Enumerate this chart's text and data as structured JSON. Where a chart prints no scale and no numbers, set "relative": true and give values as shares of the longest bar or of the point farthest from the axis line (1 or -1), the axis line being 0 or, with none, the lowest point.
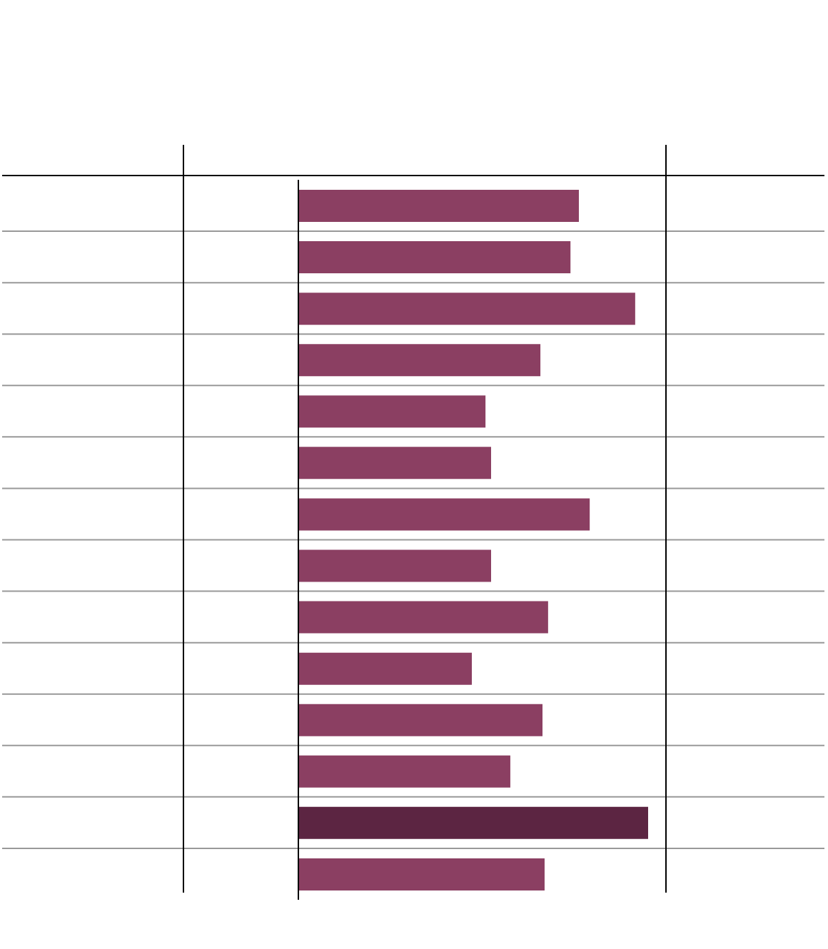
{
  "chart_data": {
    "type": "bar",
    "orientation": "horizontal",
    "relative": true,
    "categories": [
      null,
      null,
      null,
      null,
      null,
      null,
      null,
      null,
      null,
      null,
      null,
      null,
      null,
      null
    ],
    "values": [
      0.802,
      0.778,
      0.963,
      0.692,
      0.535,
      0.551,
      0.833,
      0.551,
      0.714,
      0.496,
      0.698,
      0.606,
      1,
      0.704
    ],
    "colors": [
      "#8b3f62",
      "#8b3f62",
      "#8b3f62",
      "#8b3f62",
      "#8b3f62",
      "#8b3f62",
      "#8b3f62",
      "#8b3f62",
      "#8b3f62",
      "#8b3f62",
      "#8b3f62",
      "#8b3f62",
      "#5c2542",
      "#8b3f62"
    ]
  }
}
